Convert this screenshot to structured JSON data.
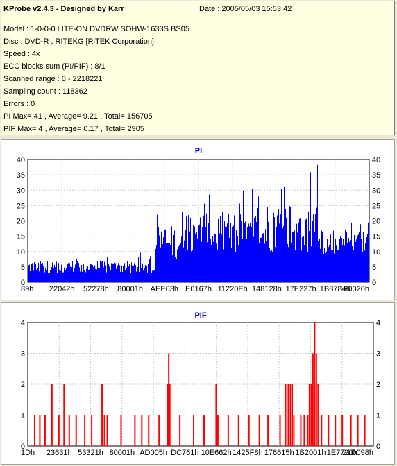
{
  "info": {
    "title": "KProbe v2.4.3 - Designed by Karr",
    "date": "Date : 2005/05/03 15:53:42",
    "lines": [
      "Model : 1-0-0-0 LITE-ON DVDRW SOHW-1633S BS05",
      "Disc : DVD-R , RITEKG [RiTEK Corporation]",
      "Speed : 4x",
      "ECC blocks sum (PI/PIF) : 8/1",
      "Scanned range : 0 - 2218221",
      "Sampling count : 118362",
      "Errors : 0",
      "PI Max= 41 , Average= 9.21 , Total= 156705",
      "PIF Max= 4 , Average= 0.17 , Total= 2905"
    ]
  },
  "colors": {
    "pi": "#0000ff",
    "pif": "#ff0000",
    "title": "#0000cc",
    "panel": "#ffffe1",
    "background": "#ece9d8"
  },
  "chart_data": [
    {
      "type": "area",
      "title": "PI",
      "ylim": [
        0,
        40
      ],
      "yticks": [
        0,
        5,
        10,
        15,
        20,
        25,
        30,
        35,
        40
      ],
      "x_tick_labels": [
        "89h",
        "22042h",
        "52278h",
        "80001h",
        "AEE63h",
        "E0167h",
        "11220Eh",
        "148128h",
        "17E227h",
        "1B8784h",
        "1F0020h"
      ],
      "grid": true,
      "segments": [
        {
          "x_start": 0.0,
          "x_end": 0.37,
          "base": 5,
          "spread": 3,
          "peaks": 10
        },
        {
          "x_start": 0.37,
          "x_end": 0.45,
          "base": 13,
          "spread": 8,
          "peaks": 23
        },
        {
          "x_start": 0.45,
          "x_end": 0.55,
          "base": 17,
          "spread": 10,
          "peaks": 30
        },
        {
          "x_start": 0.55,
          "x_end": 0.7,
          "base": 16,
          "spread": 10,
          "peaks": 31
        },
        {
          "x_start": 0.7,
          "x_end": 0.85,
          "base": 18,
          "spread": 12,
          "peaks": 41
        },
        {
          "x_start": 0.85,
          "x_end": 1.0,
          "base": 13,
          "spread": 6,
          "peaks": 20
        }
      ],
      "max": 41
    },
    {
      "type": "bar",
      "title": "PIF",
      "ylim": [
        0,
        4
      ],
      "yticks": [
        0,
        1,
        2,
        3,
        4
      ],
      "x_tick_labels": [
        "1Dh",
        "23631h",
        "53321h",
        "80001h",
        "AD005h",
        "DC761h",
        "10E662h",
        "1425F8h",
        "176615h",
        "1B2001h",
        "1E7720h",
        "21D098h"
      ],
      "grid": true,
      "spikes": [
        {
          "x": 0.02,
          "v": 1
        },
        {
          "x": 0.035,
          "v": 1
        },
        {
          "x": 0.05,
          "v": 1
        },
        {
          "x": 0.07,
          "v": 2
        },
        {
          "x": 0.09,
          "v": 1
        },
        {
          "x": 0.105,
          "v": 2
        },
        {
          "x": 0.12,
          "v": 1
        },
        {
          "x": 0.14,
          "v": 1
        },
        {
          "x": 0.165,
          "v": 1
        },
        {
          "x": 0.185,
          "v": 1
        },
        {
          "x": 0.215,
          "v": 2
        },
        {
          "x": 0.222,
          "v": 1
        },
        {
          "x": 0.23,
          "v": 1
        },
        {
          "x": 0.27,
          "v": 1
        },
        {
          "x": 0.31,
          "v": 1
        },
        {
          "x": 0.33,
          "v": 1
        },
        {
          "x": 0.35,
          "v": 1
        },
        {
          "x": 0.38,
          "v": 1
        },
        {
          "x": 0.405,
          "v": 2
        },
        {
          "x": 0.408,
          "v": 3
        },
        {
          "x": 0.411,
          "v": 2
        },
        {
          "x": 0.44,
          "v": 1
        },
        {
          "x": 0.48,
          "v": 1
        },
        {
          "x": 0.51,
          "v": 1
        },
        {
          "x": 0.545,
          "v": 2
        },
        {
          "x": 0.55,
          "v": 1
        },
        {
          "x": 0.58,
          "v": 1
        },
        {
          "x": 0.61,
          "v": 1
        },
        {
          "x": 0.64,
          "v": 1
        },
        {
          "x": 0.67,
          "v": 1
        },
        {
          "x": 0.695,
          "v": 1
        },
        {
          "x": 0.73,
          "v": 1
        },
        {
          "x": 0.745,
          "v": 2
        },
        {
          "x": 0.75,
          "v": 2
        },
        {
          "x": 0.755,
          "v": 2
        },
        {
          "x": 0.76,
          "v": 2
        },
        {
          "x": 0.765,
          "v": 2
        },
        {
          "x": 0.77,
          "v": 1
        },
        {
          "x": 0.79,
          "v": 1
        },
        {
          "x": 0.8,
          "v": 1
        },
        {
          "x": 0.81,
          "v": 1
        },
        {
          "x": 0.815,
          "v": 2
        },
        {
          "x": 0.82,
          "v": 2
        },
        {
          "x": 0.825,
          "v": 3
        },
        {
          "x": 0.83,
          "v": 4
        },
        {
          "x": 0.835,
          "v": 3
        },
        {
          "x": 0.84,
          "v": 2
        },
        {
          "x": 0.85,
          "v": 1
        },
        {
          "x": 0.87,
          "v": 1
        },
        {
          "x": 0.89,
          "v": 1
        },
        {
          "x": 0.91,
          "v": 1
        },
        {
          "x": 0.935,
          "v": 1
        },
        {
          "x": 0.955,
          "v": 1
        },
        {
          "x": 0.975,
          "v": 1
        }
      ],
      "max": 4
    }
  ]
}
